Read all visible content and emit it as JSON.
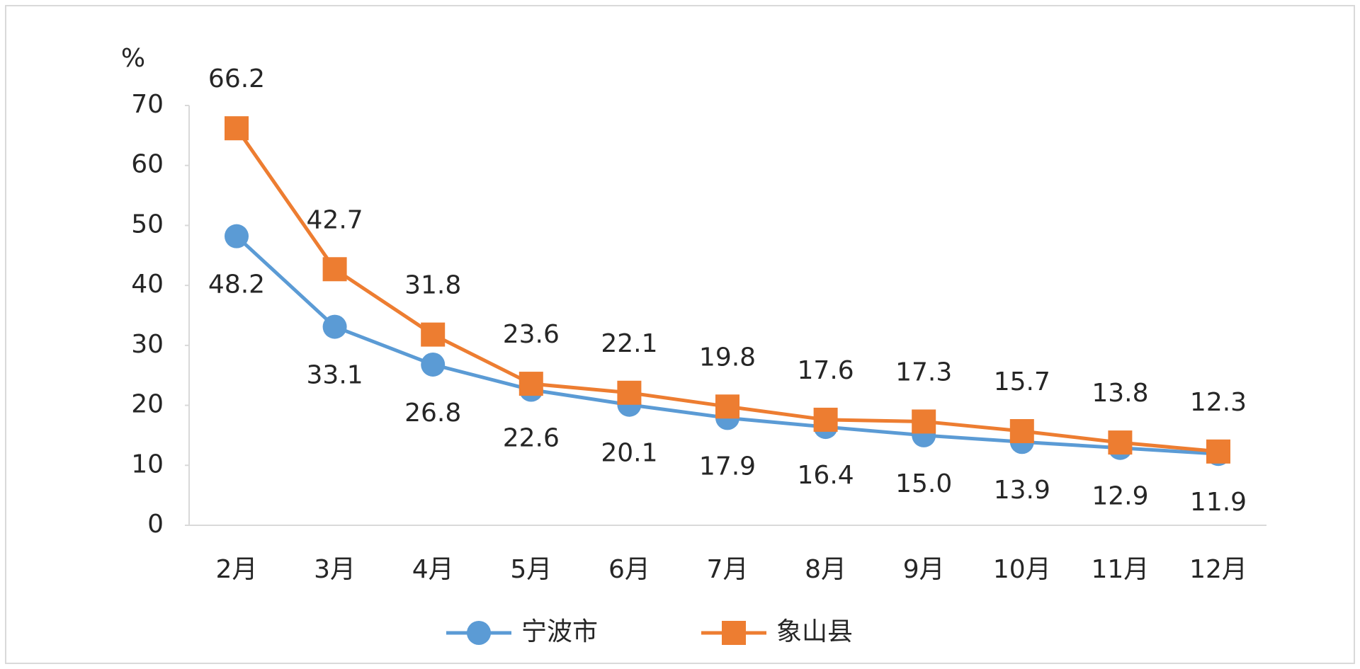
{
  "chart_data": {
    "type": "line",
    "y_label": "%",
    "categories": [
      "2月",
      "3月",
      "4月",
      "5月",
      "6月",
      "7月",
      "8月",
      "9月",
      "10月",
      "11月",
      "12月"
    ],
    "series": [
      {
        "name": "宁波市",
        "color": "#5b9bd5",
        "marker": "circle",
        "label_position": "below",
        "values": [
          48.2,
          33.1,
          26.8,
          22.6,
          20.1,
          17.9,
          16.4,
          15.0,
          13.9,
          12.9,
          11.9
        ],
        "value_labels": [
          "48.2",
          "33.1",
          "26.8",
          "22.6",
          "20.1",
          "17.9",
          "16.4",
          "15.0",
          "13.9",
          "12.9",
          "11.9"
        ]
      },
      {
        "name": "象山县",
        "color": "#ed7d31",
        "marker": "square",
        "label_position": "above",
        "values": [
          66.2,
          42.7,
          31.8,
          23.6,
          22.1,
          19.8,
          17.6,
          17.3,
          15.7,
          13.8,
          12.3
        ]
      }
    ],
    "ylim": [
      0,
      70
    ],
    "yticks": [
      0,
      10,
      20,
      30,
      40,
      50,
      60,
      70
    ],
    "grid": false,
    "legend": "bottom"
  }
}
